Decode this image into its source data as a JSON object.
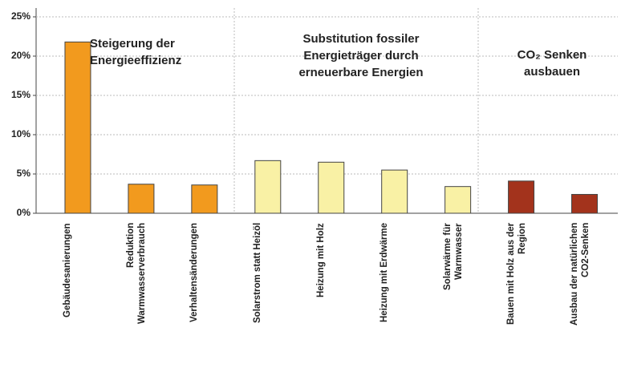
{
  "chart_data": {
    "type": "bar",
    "categories": [
      "Gebäudesanierungen",
      "Reduktion\nWarmwasserverbrauch",
      "Verhaltensänderungen",
      "Solarstrom statt Heizöl",
      "Heizung mit Holz",
      "Heizung mit Erdwärme",
      "Solarwärme für\nWarmwasser",
      "Bauen mit Holz aus der\nRegion",
      "Ausbau der natürlichen\nCO2-Senken"
    ],
    "values": [
      21.8,
      3.7,
      3.6,
      6.7,
      6.5,
      5.5,
      3.4,
      4.1,
      2.4
    ],
    "colors": [
      "#f29a1e",
      "#f29a1e",
      "#f29a1e",
      "#f9f1a5",
      "#f9f1a5",
      "#f9f1a5",
      "#f9f1a5",
      "#a3331c",
      "#a3331c"
    ],
    "ylim": [
      0,
      25
    ],
    "yticks": [
      {
        "value": 0,
        "label": "0%"
      },
      {
        "value": 5,
        "label": "5%"
      },
      {
        "value": 10,
        "label": "10%"
      },
      {
        "value": 15,
        "label": "15%"
      },
      {
        "value": 20,
        "label": "20%"
      },
      {
        "value": 25,
        "label": "25%"
      }
    ],
    "grid": true,
    "annotations": [
      "Steigerung der\nEnergieeffizienz",
      "Substitution fossiler\nEnergieträger durch\nerneuerbare Energien",
      "CO₂ Senken\nausbauen"
    ]
  }
}
